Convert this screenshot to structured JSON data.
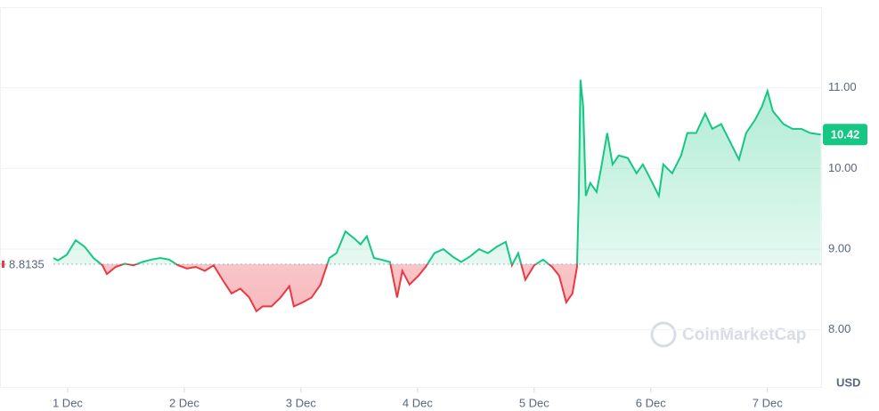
{
  "chart_data": {
    "type": "line",
    "watermark": "CoinMarketCap",
    "y_axis_label": "USD",
    "baseline": 8.8135,
    "colors": {
      "up": "#16c784",
      "down": "#ea3943"
    },
    "grid": true,
    "xlim": [
      0.42,
      7.46
    ],
    "ylim": [
      7.28,
      12.0
    ],
    "xticks": [
      {
        "value": 1,
        "label": "1 Dec"
      },
      {
        "value": 2,
        "label": "2 Dec"
      },
      {
        "value": 3,
        "label": "3 Dec"
      },
      {
        "value": 4,
        "label": "4 Dec"
      },
      {
        "value": 5,
        "label": "5 Dec"
      },
      {
        "value": 6,
        "label": "6 Dec"
      },
      {
        "value": 7,
        "label": "7 Dec"
      }
    ],
    "yticks": [
      {
        "value": 8,
        "label": "8.00"
      },
      {
        "value": 9,
        "label": "9.00"
      },
      {
        "value": 10,
        "label": "10.00"
      },
      {
        "value": 11,
        "label": "11.00"
      }
    ],
    "x": [
      0.878,
      0.916,
      0.993,
      1.069,
      1.145,
      1.222,
      1.298,
      1.336,
      1.412,
      1.489,
      1.565,
      1.641,
      1.718,
      1.794,
      1.87,
      1.947,
      2.023,
      2.099,
      2.176,
      2.252,
      2.328,
      2.405,
      2.481,
      2.557,
      2.618,
      2.672,
      2.748,
      2.825,
      2.901,
      2.939,
      3.015,
      3.092,
      3.168,
      3.244,
      3.305,
      3.382,
      3.458,
      3.512,
      3.565,
      3.626,
      3.687,
      3.764,
      3.825,
      3.87,
      3.931,
      4.008,
      4.069,
      4.145,
      4.222,
      4.298,
      4.374,
      4.451,
      4.527,
      4.603,
      4.68,
      4.756,
      4.809,
      4.863,
      4.924,
      5.0,
      5.076,
      5.153,
      5.214,
      5.275,
      5.328,
      5.367,
      5.382,
      5.397,
      5.42,
      5.443,
      5.481,
      5.535,
      5.573,
      5.626,
      5.672,
      5.725,
      5.802,
      5.878,
      5.931,
      5.993,
      6.069,
      6.107,
      6.183,
      6.26,
      6.313,
      6.389,
      6.466,
      6.527,
      6.603,
      6.68,
      6.756,
      6.817,
      6.893,
      6.954,
      7.0,
      7.046,
      7.138,
      7.214,
      7.29,
      7.367,
      7.458
    ],
    "series": [
      {
        "values": [
          8.89,
          8.86,
          8.93,
          9.11,
          9.03,
          8.89,
          8.8,
          8.69,
          8.78,
          8.82,
          8.8,
          8.84,
          8.87,
          8.89,
          8.87,
          8.8,
          8.76,
          8.78,
          8.73,
          8.8,
          8.62,
          8.45,
          8.51,
          8.4,
          8.23,
          8.29,
          8.29,
          8.4,
          8.54,
          8.29,
          8.34,
          8.4,
          8.56,
          8.89,
          8.95,
          9.22,
          9.13,
          9.06,
          9.16,
          8.89,
          8.87,
          8.84,
          8.4,
          8.73,
          8.56,
          8.67,
          8.78,
          8.95,
          9.0,
          8.91,
          8.84,
          8.91,
          9.0,
          8.95,
          9.03,
          9.09,
          8.8,
          8.95,
          8.62,
          8.8,
          8.87,
          8.78,
          8.67,
          8.34,
          8.45,
          8.78,
          9.66,
          11.1,
          10.77,
          9.66,
          9.82,
          9.71,
          10.0,
          10.44,
          10.05,
          10.16,
          10.13,
          9.94,
          10.05,
          9.88,
          9.66,
          10.05,
          9.94,
          10.16,
          10.44,
          10.44,
          10.68,
          10.49,
          10.55,
          10.33,
          10.11,
          10.44,
          10.6,
          10.77,
          10.96,
          10.71,
          10.55,
          10.49,
          10.49,
          10.44,
          10.42
        ]
      }
    ]
  }
}
